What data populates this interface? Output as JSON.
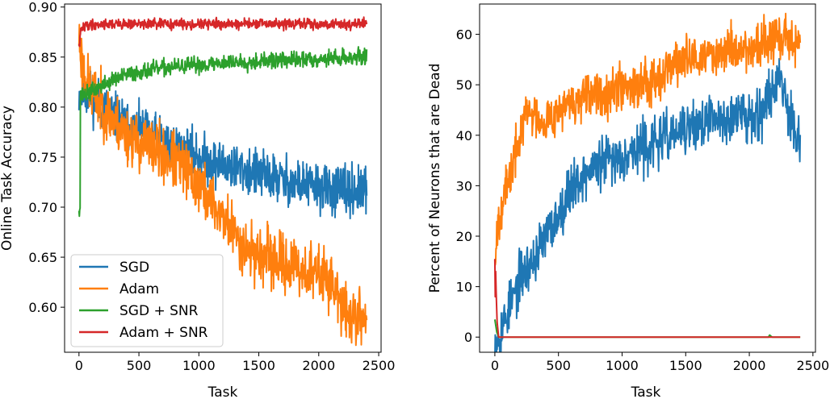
{
  "colors": {
    "SGD": "#1f77b4",
    "Adam": "#ff7f0e",
    "SGD + SNR": "#2ca02c",
    "Adam + SNR": "#d62728"
  },
  "chart_data": [
    {
      "type": "line",
      "title": "",
      "xlabel": "Task",
      "ylabel": "Online Task Accuracy",
      "xlim": [
        -120,
        2520
      ],
      "ylim": [
        0.555,
        0.903
      ],
      "xticks": [
        0,
        500,
        1000,
        1500,
        2000,
        2500
      ],
      "xtick_labels": [
        "0",
        "500",
        "1000",
        "1500",
        "2000",
        "2500"
      ],
      "yticks": [
        0.6,
        0.65,
        0.7,
        0.75,
        0.8,
        0.85,
        0.9
      ],
      "ytick_labels": [
        "0.60",
        "0.65",
        "0.70",
        "0.75",
        "0.80",
        "0.85",
        "0.90"
      ],
      "legend": {
        "position": "bottom-left",
        "entries": [
          "SGD",
          "Adam",
          "SGD + SNR",
          "Adam + SNR"
        ]
      },
      "series": [
        {
          "name": "SGD",
          "color": "#1f77b4",
          "noise": 0.012,
          "seed": 11,
          "x": [
            0,
            30,
            100,
            200,
            300,
            400,
            500,
            600,
            700,
            800,
            900,
            1000,
            1100,
            1200,
            1300,
            1400,
            1500,
            1600,
            1700,
            1800,
            1900,
            2000,
            2100,
            2200,
            2300,
            2400
          ],
          "y": [
            0.812,
            0.815,
            0.812,
            0.8,
            0.79,
            0.782,
            0.775,
            0.77,
            0.765,
            0.76,
            0.755,
            0.75,
            0.745,
            0.742,
            0.74,
            0.737,
            0.732,
            0.73,
            0.727,
            0.724,
            0.722,
            0.72,
            0.717,
            0.716,
            0.715,
            0.715
          ]
        },
        {
          "name": "Adam",
          "color": "#ff7f0e",
          "noise": 0.014,
          "seed": 23,
          "x": [
            0,
            30,
            100,
            200,
            300,
            400,
            500,
            600,
            700,
            800,
            900,
            1000,
            1100,
            1200,
            1300,
            1400,
            1500,
            1600,
            1700,
            1800,
            1900,
            2000,
            2100,
            2200,
            2300,
            2400
          ],
          "y": [
            0.87,
            0.84,
            0.815,
            0.8,
            0.785,
            0.772,
            0.765,
            0.76,
            0.752,
            0.745,
            0.735,
            0.722,
            0.706,
            0.69,
            0.673,
            0.658,
            0.652,
            0.648,
            0.645,
            0.64,
            0.636,
            0.632,
            0.628,
            0.595,
            0.59,
            0.59
          ]
        },
        {
          "name": "SGD + SNR",
          "color": "#2ca02c",
          "noise": 0.004,
          "seed": 37,
          "x": [
            0,
            10,
            12,
            30,
            100,
            200,
            300,
            400,
            500,
            600,
            700,
            800,
            900,
            1000,
            1100,
            1200,
            1300,
            1400,
            1500,
            1600,
            1700,
            1800,
            1900,
            2000,
            2100,
            2200,
            2300,
            2400
          ],
          "y": [
            0.7,
            0.7,
            0.812,
            0.812,
            0.815,
            0.822,
            0.828,
            0.832,
            0.835,
            0.837,
            0.839,
            0.84,
            0.841,
            0.842,
            0.843,
            0.844,
            0.845,
            0.845,
            0.846,
            0.846,
            0.847,
            0.847,
            0.848,
            0.848,
            0.849,
            0.849,
            0.85,
            0.85
          ]
        },
        {
          "name": "Adam + SNR",
          "color": "#d62728",
          "noise": 0.0025,
          "seed": 41,
          "x": [
            0,
            20,
            60,
            200,
            500,
            1000,
            1500,
            2000,
            2400
          ],
          "y": [
            0.86,
            0.878,
            0.882,
            0.883,
            0.883,
            0.883,
            0.883,
            0.883,
            0.883
          ]
        }
      ]
    },
    {
      "type": "line",
      "title": "",
      "xlabel": "Task",
      "ylabel": "Percent of Neurons that are Dead",
      "xlim": [
        -120,
        2520
      ],
      "ylim": [
        -3,
        66
      ],
      "xticks": [
        0,
        500,
        1000,
        1500,
        2000,
        2500
      ],
      "xtick_labels": [
        "0",
        "500",
        "1000",
        "1500",
        "2000",
        "2500"
      ],
      "yticks": [
        0,
        10,
        20,
        30,
        40,
        50,
        60
      ],
      "ytick_labels": [
        "0",
        "10",
        "20",
        "30",
        "40",
        "50",
        "60"
      ],
      "series": [
        {
          "name": "SGD",
          "color": "#1f77b4",
          "noise": 2.5,
          "seed": 53,
          "x": [
            0,
            30,
            60,
            100,
            150,
            200,
            300,
            400,
            500,
            600,
            700,
            800,
            900,
            1000,
            1100,
            1200,
            1300,
            1400,
            1500,
            1600,
            1700,
            1800,
            1900,
            2000,
            2100,
            2200,
            2250,
            2300,
            2350,
            2400
          ],
          "y": [
            0,
            0,
            2,
            5,
            8,
            12,
            15,
            20,
            24,
            30,
            32,
            34,
            35,
            36,
            37,
            38,
            39,
            40,
            41,
            42,
            43,
            43,
            44,
            44,
            45,
            50,
            52,
            46,
            42,
            40
          ]
        },
        {
          "name": "Adam",
          "color": "#ff7f0e",
          "noise": 2.2,
          "seed": 67,
          "x": [
            0,
            20,
            50,
            100,
            150,
            200,
            250,
            300,
            400,
            500,
            600,
            700,
            800,
            900,
            1000,
            1100,
            1200,
            1300,
            1400,
            1500,
            1600,
            1700,
            1800,
            1900,
            2000,
            2100,
            2200,
            2300,
            2400
          ],
          "y": [
            16,
            22,
            26,
            30,
            35,
            40,
            45,
            44,
            43,
            45,
            46,
            47,
            48,
            49,
            50,
            50,
            51,
            52,
            54,
            55,
            55,
            56,
            57,
            57,
            57,
            58,
            59,
            59,
            58
          ]
        },
        {
          "name": "SGD + SNR",
          "color": "#2ca02c",
          "noise": 0,
          "seed": 1,
          "x": [
            0,
            15,
            30,
            2150,
            2160,
            2170,
            2180,
            2400
          ],
          "y": [
            3.5,
            1,
            0,
            0,
            0.4,
            0.2,
            0,
            0
          ]
        },
        {
          "name": "Adam + SNR",
          "color": "#d62728",
          "noise": 0,
          "seed": 2,
          "x": [
            0,
            3,
            6,
            10,
            18,
            30,
            2400
          ],
          "y": [
            15.5,
            8,
            13,
            9,
            3,
            0,
            0
          ]
        }
      ]
    }
  ]
}
